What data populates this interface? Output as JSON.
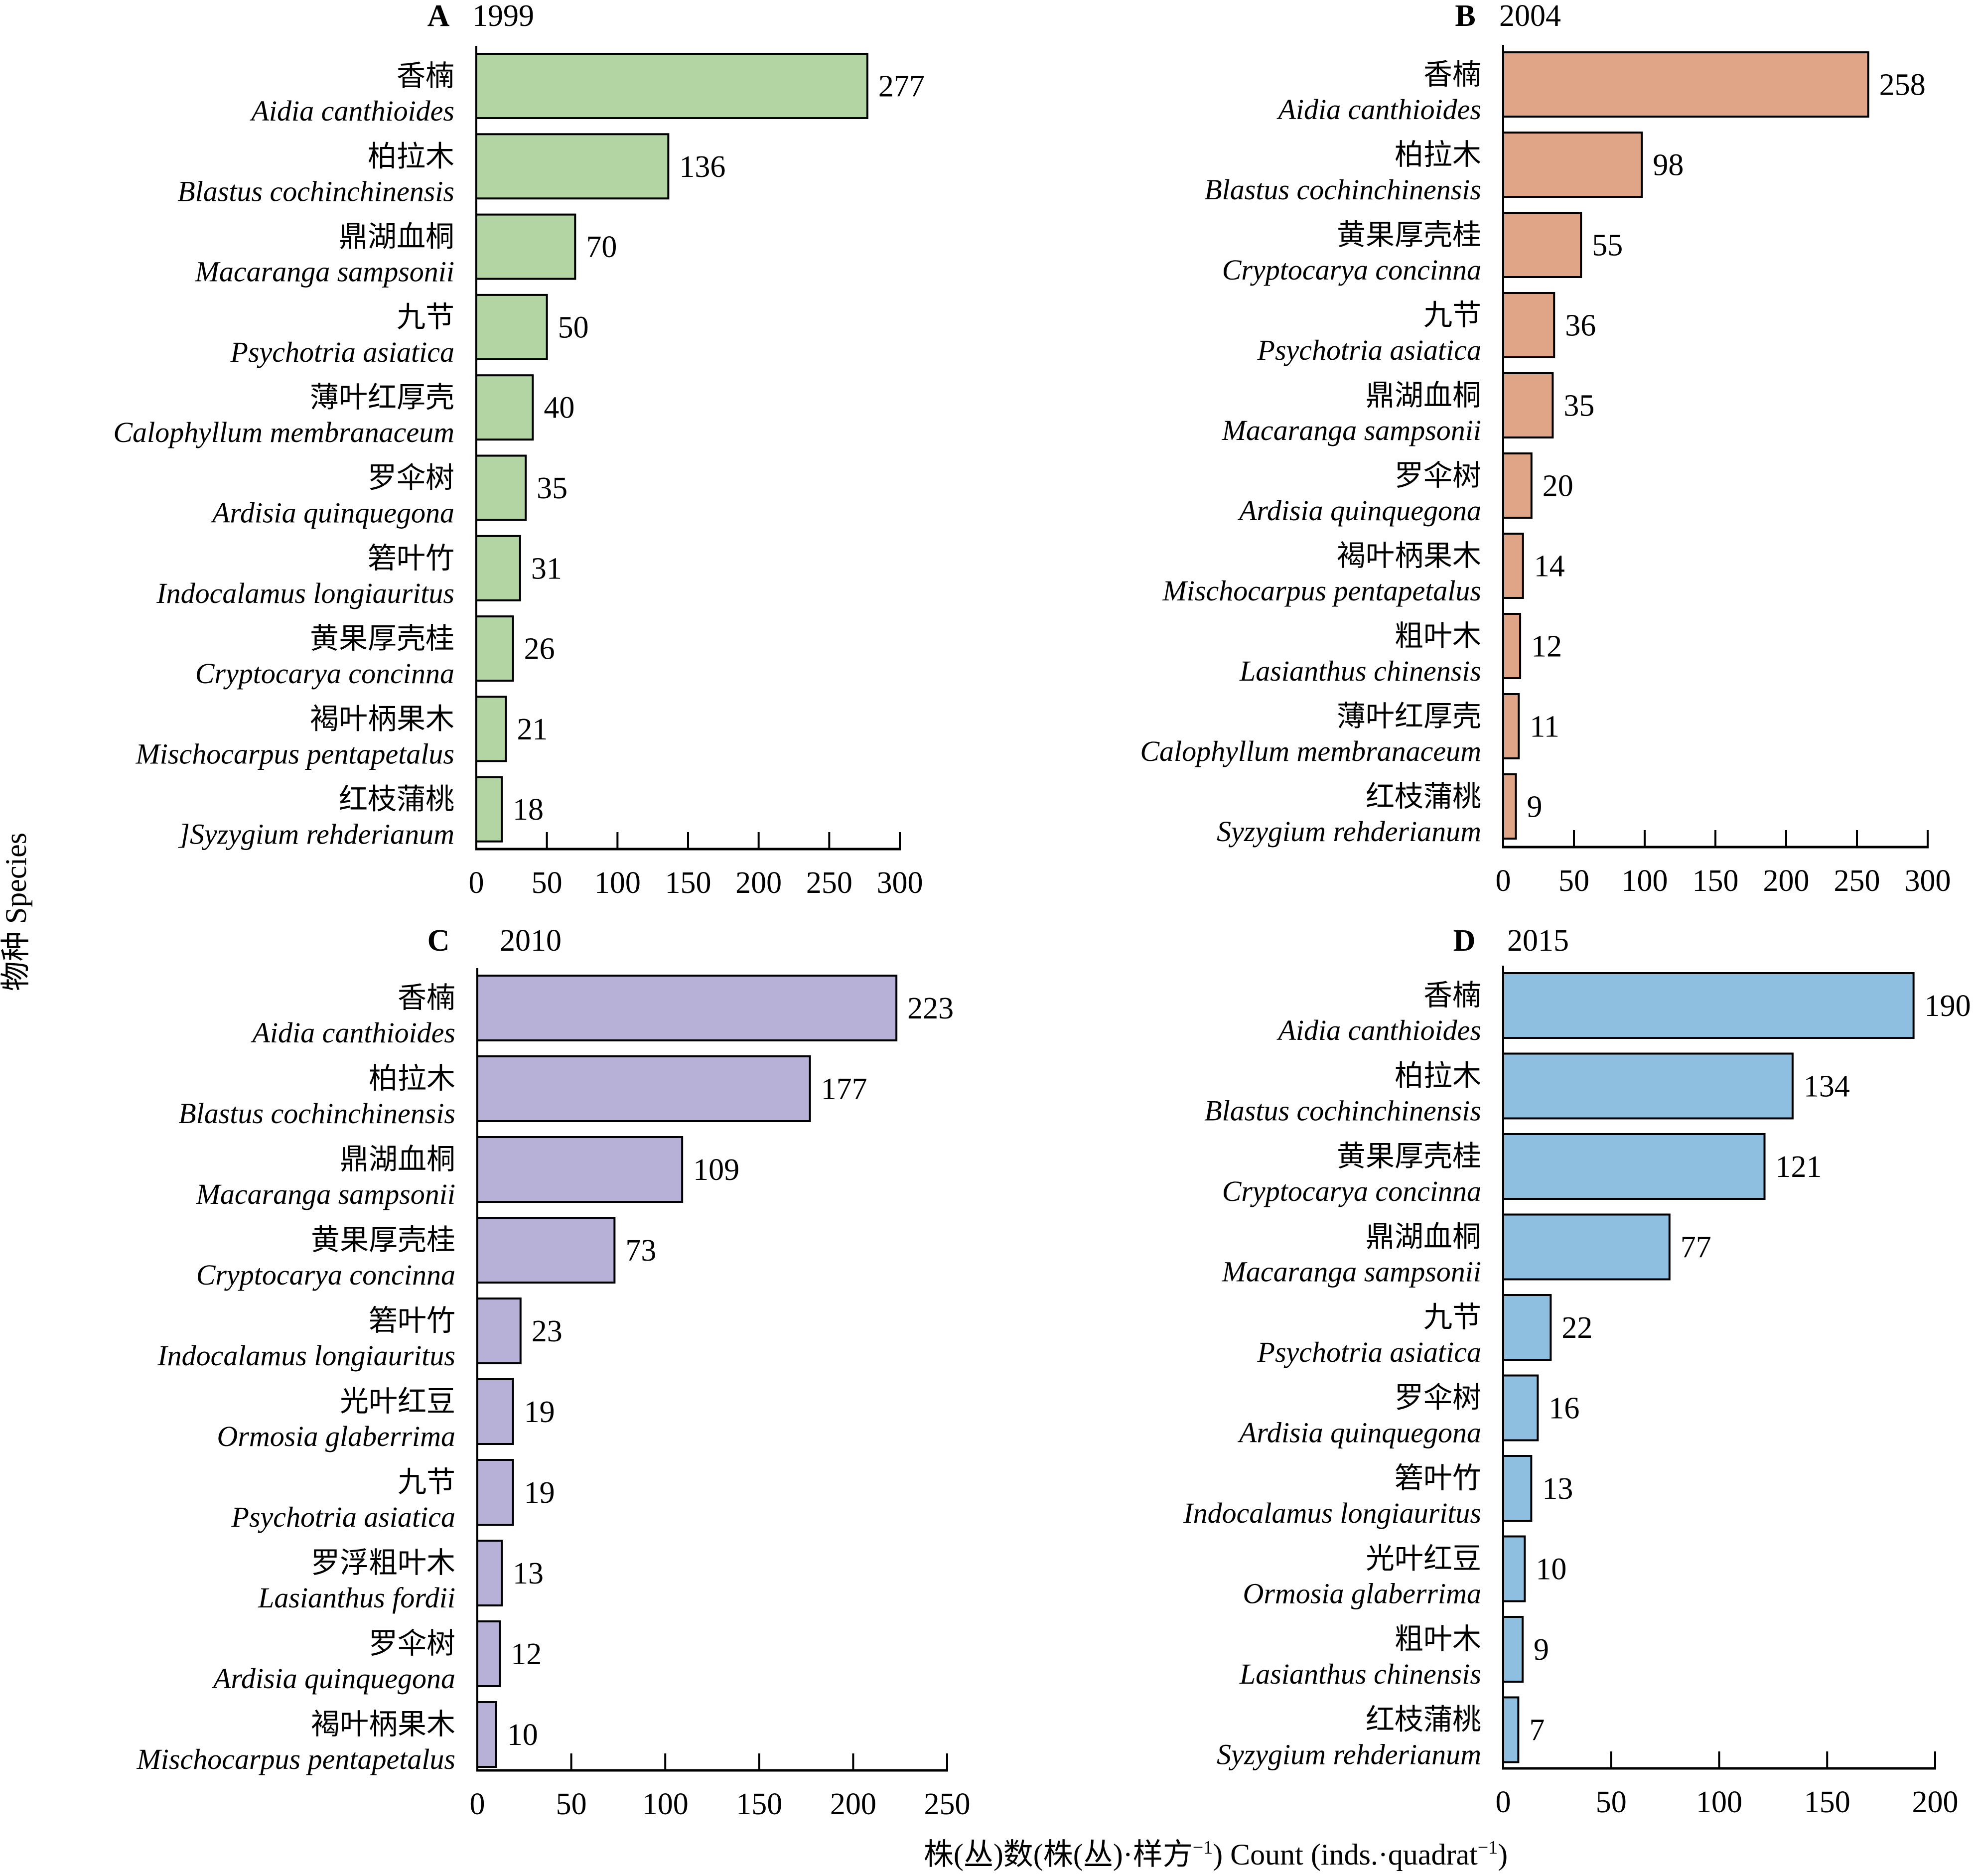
{
  "figure": {
    "y_axis_label": "物种 Species",
    "x_axis_label_cn": "株(丛)数(株(丛)·样方",
    "x_axis_label_cn_sup": "−1",
    "x_axis_label_en": ") Count (inds.·quadrat",
    "x_axis_label_en_sup": "−1",
    "x_axis_label_end": ")"
  },
  "chart_data": [
    {
      "type": "bar",
      "orientation": "horizontal",
      "panel": "A",
      "title": "1999",
      "color": "#b3d4a3",
      "xlim": [
        0,
        300
      ],
      "xticks": [
        0,
        50,
        100,
        150,
        200,
        250,
        300
      ],
      "xlabel": "株(丛)数(株(丛)·样方⁻¹) Count (inds.·quadrat⁻¹)",
      "ylabel": "物种 Species",
      "categories": [
        {
          "cn": "香楠",
          "latin": "Aidia canthioides"
        },
        {
          "cn": "柏拉木",
          "latin": "Blastus cochinchinensis"
        },
        {
          "cn": "鼎湖血桐",
          "latin": "Macaranga sampsonii"
        },
        {
          "cn": "九节",
          "latin": "Psychotria asiatica"
        },
        {
          "cn": "薄叶红厚壳",
          "latin": "Calophyllum membranaceum"
        },
        {
          "cn": "罗伞树",
          "latin": "Ardisia quinquegona"
        },
        {
          "cn": "箬叶竹",
          "latin": "Indocalamus longiauritus"
        },
        {
          "cn": "黄果厚壳桂",
          "latin": "Cryptocarya concinna"
        },
        {
          "cn": "褐叶柄果木",
          "latin": "Mischocarpus pentapetalus"
        },
        {
          "cn": "红枝蒲桃",
          "latin": "]Syzygium rehderianum"
        }
      ],
      "values": [
        277,
        136,
        70,
        50,
        40,
        35,
        31,
        26,
        21,
        18
      ]
    },
    {
      "type": "bar",
      "orientation": "horizontal",
      "panel": "B",
      "title": "2004",
      "color": "#e0a486",
      "xlim": [
        0,
        300
      ],
      "xticks": [
        0,
        50,
        100,
        150,
        200,
        250,
        300
      ],
      "categories": [
        {
          "cn": "香楠",
          "latin": "Aidia canthioides"
        },
        {
          "cn": "柏拉木",
          "latin": "Blastus cochinchinensis"
        },
        {
          "cn": "黄果厚壳桂",
          "latin": "Cryptocarya concinna"
        },
        {
          "cn": "九节",
          "latin": "Psychotria asiatica"
        },
        {
          "cn": "鼎湖血桐",
          "latin": "Macaranga sampsonii"
        },
        {
          "cn": "罗伞树",
          "latin": "Ardisia quinquegona"
        },
        {
          "cn": "褐叶柄果木",
          "latin": "Mischocarpus pentapetalus"
        },
        {
          "cn": "粗叶木",
          "latin": "Lasianthus chinensis"
        },
        {
          "cn": "薄叶红厚壳",
          "latin": "Calophyllum membranaceum"
        },
        {
          "cn": "红枝蒲桃",
          "latin": "Syzygium rehderianum"
        }
      ],
      "values": [
        258,
        98,
        55,
        36,
        35,
        20,
        14,
        12,
        11,
        9
      ]
    },
    {
      "type": "bar",
      "orientation": "horizontal",
      "panel": "C",
      "title": "2010",
      "color": "#b7b0d7",
      "xlim": [
        0,
        250
      ],
      "xticks": [
        0,
        50,
        100,
        150,
        200,
        250
      ],
      "categories": [
        {
          "cn": "香楠",
          "latin": "Aidia canthioides"
        },
        {
          "cn": "柏拉木",
          "latin": "Blastus cochinchinensis"
        },
        {
          "cn": "鼎湖血桐",
          "latin": "Macaranga sampsonii"
        },
        {
          "cn": "黄果厚壳桂",
          "latin": "Cryptocarya concinna"
        },
        {
          "cn": "箬叶竹",
          "latin": "Indocalamus longiauritus"
        },
        {
          "cn": "光叶红豆",
          "latin": "Ormosia glaberrima"
        },
        {
          "cn": "九节",
          "latin": "Psychotria asiatica"
        },
        {
          "cn": "罗浮粗叶木",
          "latin": "Lasianthus fordii"
        },
        {
          "cn": "罗伞树",
          "latin": "Ardisia quinquegona"
        },
        {
          "cn": "褐叶柄果木",
          "latin": "Mischocarpus pentapetalus"
        }
      ],
      "values": [
        223,
        177,
        109,
        73,
        23,
        19,
        19,
        13,
        12,
        10
      ]
    },
    {
      "type": "bar",
      "orientation": "horizontal",
      "panel": "D",
      "title": "2015",
      "color": "#8fbfe0",
      "xlim": [
        0,
        200
      ],
      "xticks": [
        0,
        50,
        100,
        150,
        200
      ],
      "categories": [
        {
          "cn": "香楠",
          "latin": "Aidia canthioides"
        },
        {
          "cn": "柏拉木",
          "latin": "Blastus cochinchinensis"
        },
        {
          "cn": "黄果厚壳桂",
          "latin": "Cryptocarya concinna"
        },
        {
          "cn": "鼎湖血桐",
          "latin": "Macaranga sampsonii"
        },
        {
          "cn": "九节",
          "latin": "Psychotria asiatica"
        },
        {
          "cn": "罗伞树",
          "latin": "Ardisia quinquegona"
        },
        {
          "cn": "箬叶竹",
          "latin": "Indocalamus longiauritus"
        },
        {
          "cn": "光叶红豆",
          "latin": "Ormosia glaberrima"
        },
        {
          "cn": "粗叶木",
          "latin": "Lasianthus chinensis"
        },
        {
          "cn": "红枝蒲桃",
          "latin": "Syzygium rehderianum"
        }
      ],
      "values": [
        190,
        134,
        121,
        77,
        22,
        16,
        13,
        10,
        9,
        7
      ]
    }
  ]
}
